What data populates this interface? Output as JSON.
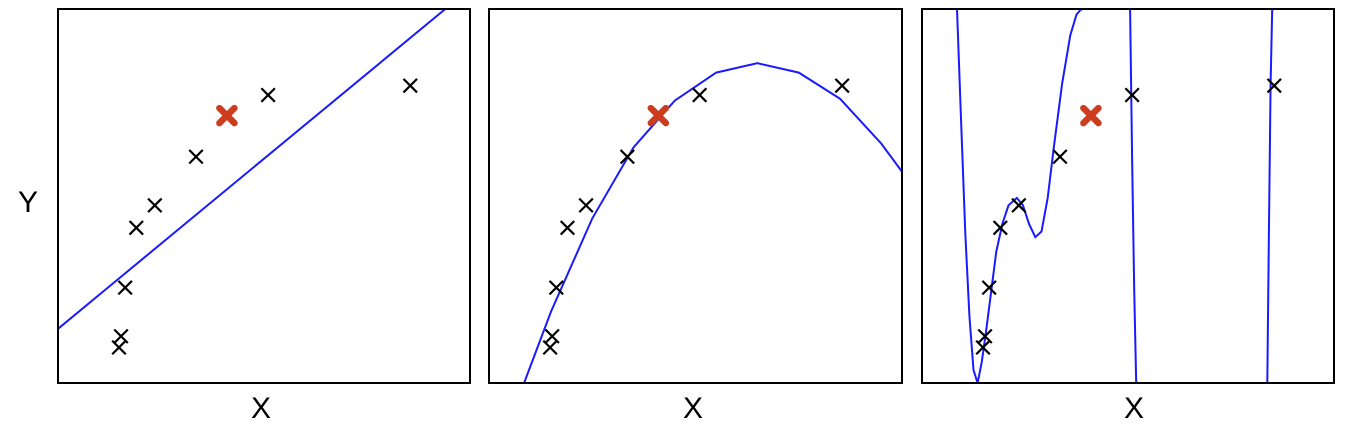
{
  "chart_data": [
    {
      "type": "scatter",
      "panel": "left",
      "xlabel": "X",
      "ylabel": "Y",
      "xlim": [
        0,
        10
      ],
      "ylim": [
        0,
        10
      ],
      "grid": false,
      "points": {
        "x": [
          1.48,
          1.53,
          1.63,
          1.9,
          2.35,
          3.35,
          5.1,
          8.55
        ],
        "y": [
          0.95,
          1.25,
          2.55,
          4.15,
          4.75,
          6.05,
          7.7,
          7.95
        ]
      },
      "highlight": {
        "x": 4.1,
        "y": 7.15,
        "color": "#cc3d1e"
      },
      "fit": {
        "kind": "linear",
        "x": [
          0,
          9.4
        ],
        "y": [
          1.45,
          10.0
        ]
      },
      "line_color": "#1a1aff"
    },
    {
      "type": "scatter",
      "panel": "middle",
      "xlabel": "X",
      "ylabel": "",
      "xlim": [
        0,
        10
      ],
      "ylim": [
        0,
        10
      ],
      "grid": false,
      "points": {
        "x": [
          1.48,
          1.53,
          1.63,
          1.9,
          2.35,
          3.35,
          5.1,
          8.55
        ],
        "y": [
          0.95,
          1.25,
          2.55,
          4.15,
          4.75,
          6.05,
          7.7,
          7.95
        ]
      },
      "highlight": {
        "x": 4.1,
        "y": 7.15,
        "color": "#cc3d1e"
      },
      "fit": {
        "kind": "quadratic",
        "x": [
          0.85,
          1.5,
          2.5,
          3.5,
          4.5,
          5.5,
          6.5,
          7.5,
          8.5,
          9.5,
          10.0
        ],
        "y": [
          0.0,
          1.9,
          4.4,
          6.3,
          7.55,
          8.3,
          8.55,
          8.3,
          7.6,
          6.4,
          5.65
        ]
      },
      "line_color": "#1a1aff"
    },
    {
      "type": "scatter",
      "panel": "right",
      "xlabel": "X",
      "ylabel": "",
      "xlim": [
        0,
        10
      ],
      "ylim": [
        0,
        10
      ],
      "grid": false,
      "points": {
        "x": [
          1.48,
          1.53,
          1.63,
          1.9,
          2.35,
          3.35,
          5.1,
          8.55
        ],
        "y": [
          0.95,
          1.25,
          2.55,
          4.15,
          4.75,
          6.05,
          7.7,
          7.95
        ]
      },
      "highlight": {
        "x": 4.1,
        "y": 7.15,
        "color": "#cc3d1e"
      },
      "fit": {
        "kind": "high-degree polynomial",
        "x": [
          0.85,
          0.95,
          1.05,
          1.15,
          1.25,
          1.35,
          1.45,
          1.5,
          1.55,
          1.65,
          1.8,
          1.95,
          2.1,
          2.3,
          2.45,
          2.6,
          2.75,
          2.9,
          3.05,
          3.2,
          3.4,
          3.6,
          3.75,
          3.85,
          3.9,
          3.93,
          5.05,
          5.1,
          5.15,
          5.2,
          8.38,
          8.42,
          8.46,
          8.5
        ],
        "y": [
          10.0,
          7.0,
          4.0,
          1.8,
          0.35,
          0.0,
          0.55,
          0.95,
          1.35,
          2.2,
          3.5,
          4.25,
          4.75,
          4.95,
          4.75,
          4.25,
          3.9,
          4.05,
          4.95,
          6.3,
          8.0,
          9.3,
          9.85,
          9.98,
          10.0,
          10.0,
          10.0,
          6.0,
          2.5,
          0.0,
          0.0,
          4.0,
          8.0,
          10.0
        ]
      },
      "line_color": "#1a1aff"
    }
  ]
}
